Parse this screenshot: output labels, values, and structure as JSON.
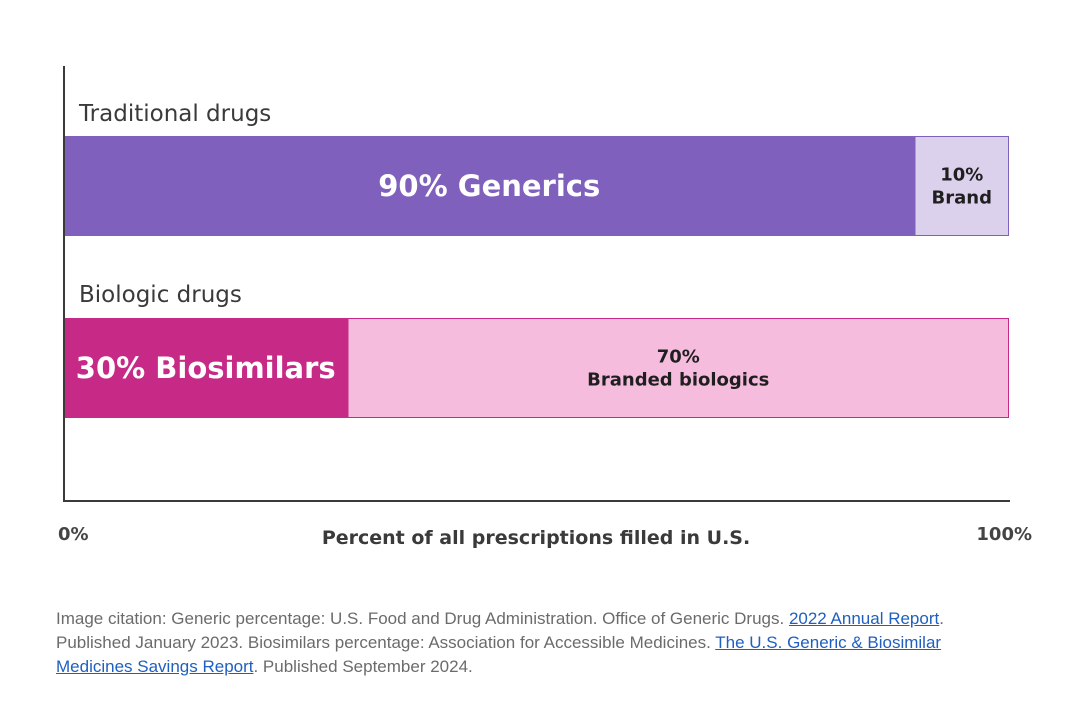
{
  "chart_data": {
    "type": "bar",
    "orientation": "horizontal",
    "stacked": true,
    "xlabel": "Percent of all prescriptions filled in U.S.",
    "xlim": [
      0,
      100
    ],
    "x_tick_labels": [
      "0%",
      "100%"
    ],
    "grid": false,
    "categories": [
      "Traditional drugs",
      "Biologic drugs"
    ],
    "series": [
      {
        "category": "Traditional drugs",
        "segments": [
          {
            "name": "Generics",
            "value": 90,
            "label_lines": [
              "90% Generics"
            ],
            "color": "#7f61bd",
            "text_style": "big"
          },
          {
            "name": "Brand",
            "value": 10,
            "label_lines": [
              "10%",
              "Brand"
            ],
            "color": "#dcd1ec",
            "border": "#7f61bd",
            "text_style": "small"
          }
        ]
      },
      {
        "category": "Biologic drugs",
        "segments": [
          {
            "name": "Biosimilars",
            "value": 30,
            "label_lines": [
              "30% Biosimilars"
            ],
            "color": "#c72a86",
            "text_style": "big"
          },
          {
            "name": "Branded biologics",
            "value": 70,
            "label_lines": [
              "70%",
              "Branded biologics"
            ],
            "color": "#f5bcde",
            "border": "#c72a86",
            "text_style": "small"
          }
        ]
      }
    ]
  },
  "citation": {
    "p1": "Image citation: Generic percentage: U.S. Food and Drug Administration. Office of Generic Drugs. ",
    "link1": "2022 Annual Report",
    "p2": ". Published January 2023. Biosimilars percentage: Association for Accessible Medicines. ",
    "link2": "The U.S. Generic & Biosimilar Medicines Savings Report",
    "p3": ". Published September 2024."
  },
  "colors": {
    "axis": "#3a3a3a",
    "link": "#1f5fbf"
  }
}
